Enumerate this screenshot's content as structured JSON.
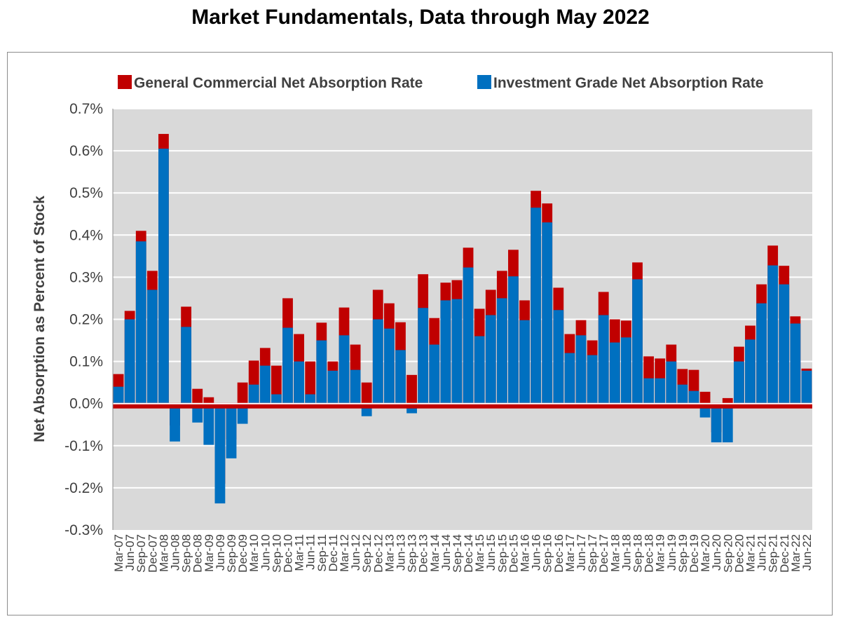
{
  "chart_data": {
    "type": "bar",
    "title": "Market Fundamentals, Data through May 2022",
    "ylabel": "Net Absorption as Percent of Stock",
    "xlabel": "",
    "ylim": [
      -0.3,
      0.7
    ],
    "yticks": [
      -0.3,
      -0.2,
      -0.1,
      0.0,
      0.1,
      0.2,
      0.3,
      0.4,
      0.5,
      0.6,
      0.7
    ],
    "ytick_labels": [
      "-0.3%",
      "-0.2%",
      "-0.1%",
      "0.0%",
      "0.1%",
      "0.2%",
      "0.3%",
      "0.4%",
      "0.5%",
      "0.6%",
      "0.7%"
    ],
    "grid": true,
    "legend_position": "top",
    "categories": [
      "Mar-07",
      "Jun-07",
      "Sep-07",
      "Dec-07",
      "Mar-08",
      "Jun-08",
      "Sep-08",
      "Dec-08",
      "Mar-09",
      "Jun-09",
      "Sep-09",
      "Dec-09",
      "Mar-10",
      "Jun-10",
      "Sep-10",
      "Dec-10",
      "Mar-11",
      "Jun-11",
      "Sep-11",
      "Dec-11",
      "Mar-12",
      "Jun-12",
      "Sep-12",
      "Dec-12",
      "Mar-13",
      "Jun-13",
      "Sep-13",
      "Dec-13",
      "Mar-14",
      "Jun-14",
      "Sep-14",
      "Dec-14",
      "Mar-15",
      "Jun-15",
      "Sep-15",
      "Dec-15",
      "Mar-16",
      "Jun-16",
      "Sep-16",
      "Dec-16",
      "Mar-17",
      "Jun-17",
      "Sep-17",
      "Dec-17",
      "Mar-18",
      "Jun-18",
      "Sep-18",
      "Dec-18",
      "Mar-19",
      "Jun-19",
      "Sep-19",
      "Dec-19",
      "Mar-20",
      "Jun-20",
      "Sep-20",
      "Dec-20",
      "Mar-21",
      "Jun-21",
      "Sep-21",
      "Dec-21",
      "Mar-22",
      "Jun-22"
    ],
    "series": [
      {
        "name": "General Commercial Net Absorption Rate",
        "color": "#C00000",
        "values": [
          0.07,
          0.22,
          0.41,
          0.315,
          0.64,
          -0.052,
          0.23,
          0.035,
          0.015,
          -0.19,
          -0.085,
          0.05,
          0.102,
          0.132,
          0.09,
          0.25,
          0.165,
          0.1,
          0.192,
          0.1,
          0.228,
          0.14,
          0.05,
          0.27,
          0.238,
          0.193,
          0.068,
          0.307,
          0.203,
          0.287,
          0.293,
          0.37,
          0.225,
          0.27,
          0.315,
          0.365,
          0.245,
          0.505,
          0.475,
          0.275,
          0.165,
          0.198,
          0.15,
          0.265,
          0.2,
          0.197,
          0.335,
          0.112,
          0.107,
          0.14,
          0.082,
          0.08,
          0.028,
          -0.068,
          0.013,
          0.135,
          0.185,
          0.283,
          0.375,
          0.327,
          0.207,
          0.083
        ]
      },
      {
        "name": "Investment Grade Net Absorption Rate",
        "color": "#0070C0",
        "values": [
          0.04,
          0.2,
          0.385,
          0.27,
          0.605,
          -0.09,
          0.182,
          -0.045,
          -0.098,
          -0.237,
          -0.13,
          -0.048,
          0.045,
          0.09,
          0.022,
          0.18,
          0.1,
          0.022,
          0.15,
          0.078,
          0.162,
          0.08,
          -0.03,
          0.2,
          0.178,
          0.127,
          -0.023,
          0.227,
          0.14,
          0.245,
          0.248,
          0.323,
          0.16,
          0.21,
          0.25,
          0.302,
          0.198,
          0.465,
          0.43,
          0.222,
          0.12,
          0.162,
          0.115,
          0.21,
          0.145,
          0.157,
          0.295,
          0.06,
          0.06,
          0.1,
          0.045,
          0.03,
          -0.033,
          -0.092,
          -0.092,
          0.1,
          0.152,
          0.238,
          0.328,
          0.283,
          0.19,
          0.078
        ]
      }
    ]
  }
}
